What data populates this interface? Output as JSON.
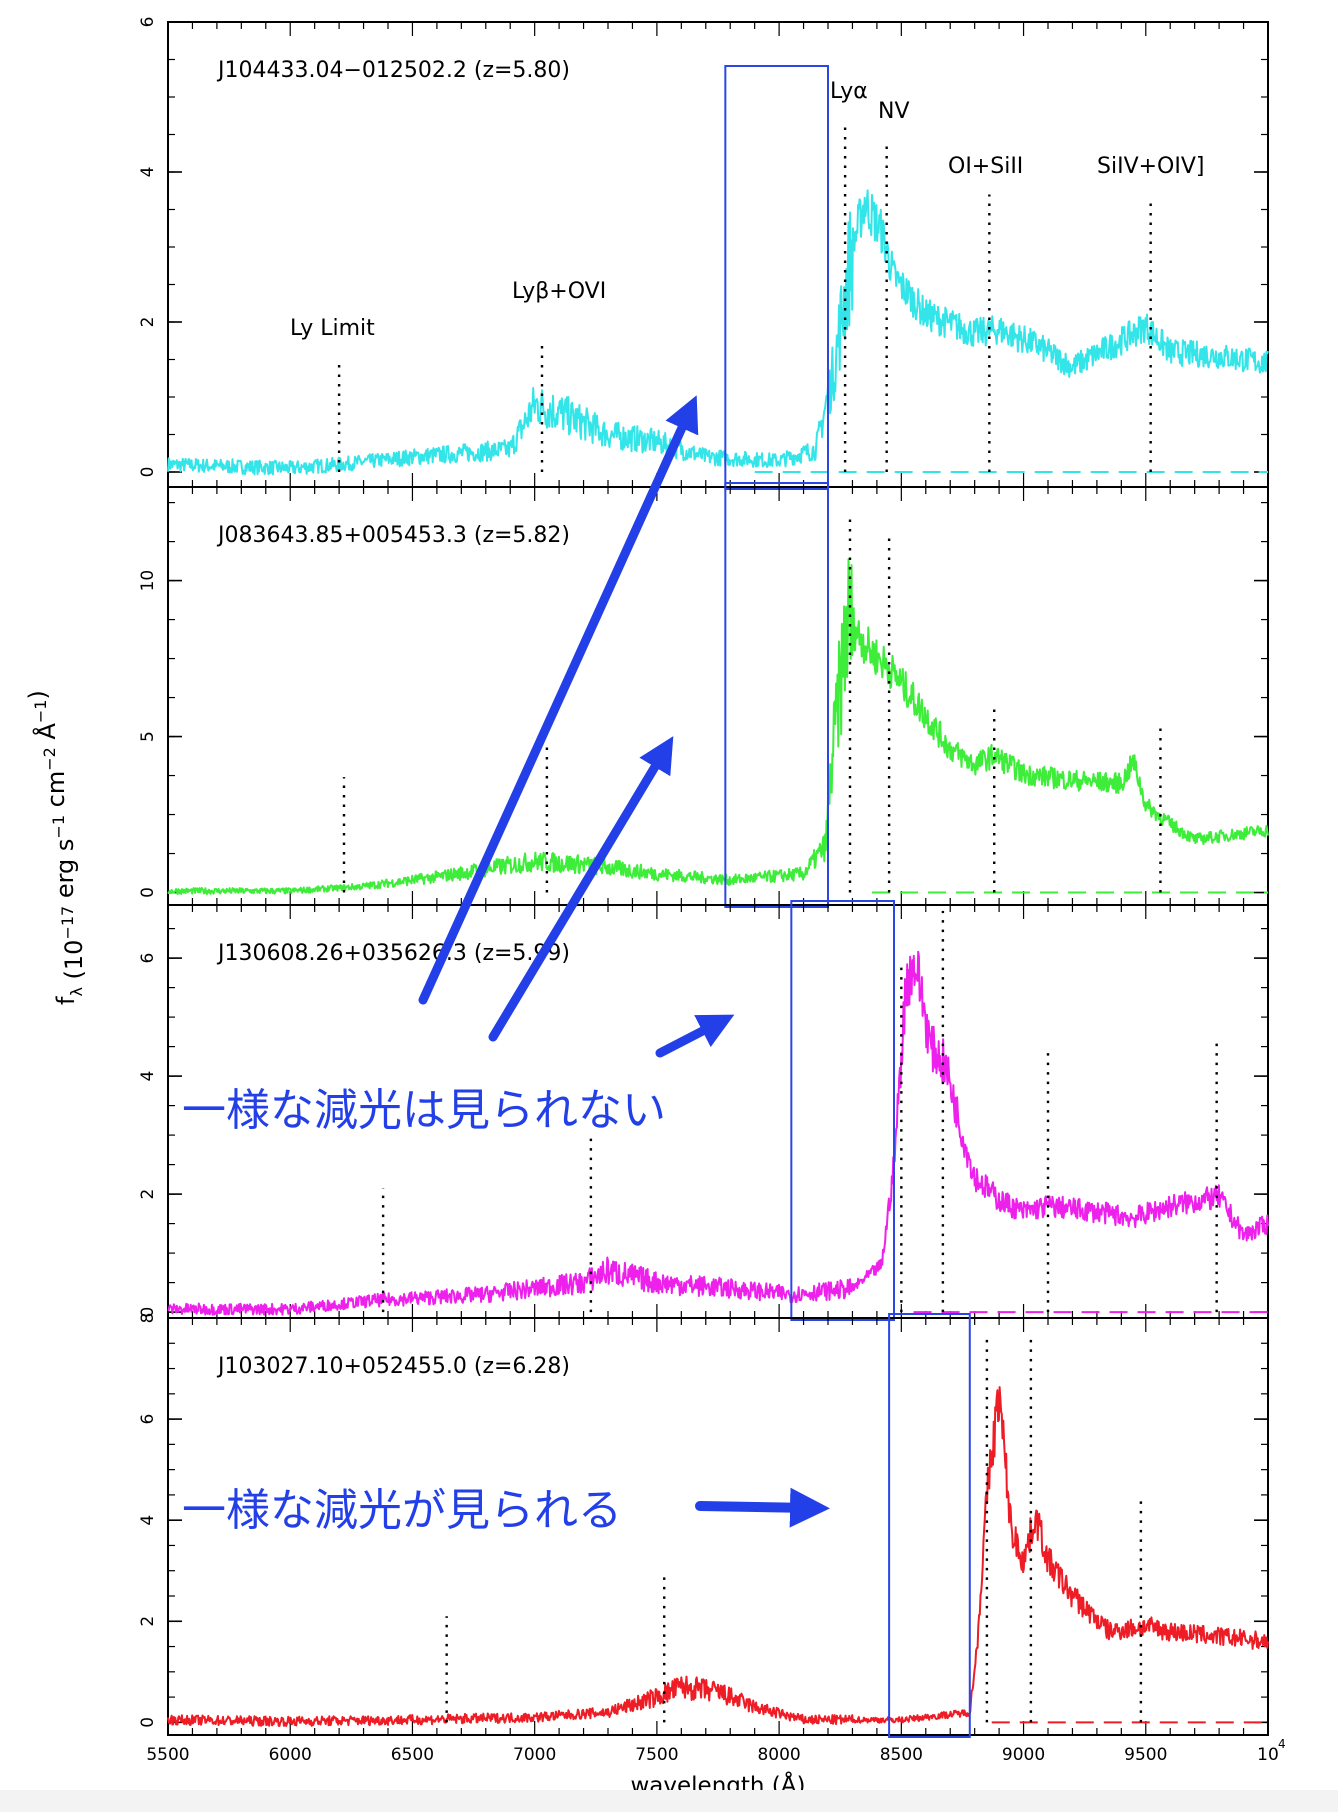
{
  "chart_data": {
    "type": "line",
    "xlabel": "wavelength (Å)",
    "ylabel_parts": [
      "f",
      "λ",
      " (10",
      "−17",
      " erg s",
      "−1",
      " cm",
      "−2",
      " Å",
      "−1",
      ")"
    ],
    "x_ticks": [
      "5500",
      "6000",
      "6500",
      "7000",
      "7500",
      "8000",
      "8500",
      "9000",
      "9500",
      "10"
    ],
    "x_tick_exp": "4",
    "xlim": [
      5500,
      10000
    ],
    "line_labels": {
      "ly_limit": "Ly  Limit",
      "ly_beta_ovi": "Lyβ+OVI",
      "ly_alpha": "Lyα",
      "nv": "NV",
      "oi_siii": "OI+SiII",
      "siiv_oiv": "SiIV+OIV]"
    },
    "panels": [
      {
        "name": "J104433.04−012502.2 (z=5.80)",
        "color": "#33e5e8",
        "ylim": [
          -0.2,
          6
        ],
        "y_ticks": [
          "0",
          "2",
          "4",
          "6"
        ],
        "y_tick_values": [
          0,
          2,
          4,
          6
        ],
        "line_x": [
          6200,
          7030,
          8270,
          8440,
          8860,
          9520
        ],
        "line_top": [
          1.5,
          1.7,
          4.6,
          4.4,
          3.7,
          3.6
        ],
        "box": [
          7780,
          8200
        ],
        "data": [
          [
            5500,
            0.1
          ],
          [
            6000,
            0.05
          ],
          [
            6200,
            0.1
          ],
          [
            6500,
            0.2
          ],
          [
            6900,
            0.3
          ],
          [
            7000,
            0.9
          ],
          [
            7100,
            0.8
          ],
          [
            7300,
            0.5
          ],
          [
            7500,
            0.4
          ],
          [
            7700,
            0.2
          ],
          [
            8000,
            0.15
          ],
          [
            8150,
            0.3
          ],
          [
            8220,
            1.3
          ],
          [
            8300,
            3.0
          ],
          [
            8350,
            3.6
          ],
          [
            8420,
            3.2
          ],
          [
            8470,
            2.6
          ],
          [
            8600,
            2.1
          ],
          [
            8800,
            1.85
          ],
          [
            8900,
            1.9
          ],
          [
            9050,
            1.7
          ],
          [
            9200,
            1.4
          ],
          [
            9400,
            1.75
          ],
          [
            9500,
            1.95
          ],
          [
            9600,
            1.6
          ],
          [
            9800,
            1.55
          ],
          [
            10000,
            1.45
          ]
        ]
      },
      {
        "name": "J083643.85+005453.3 (z=5.82)",
        "color": "#3ded3a",
        "ylim": [
          -0.4,
          13
        ],
        "y_ticks": [
          "0",
          "5",
          "10"
        ],
        "y_tick_values": [
          0,
          5,
          10
        ],
        "line_x": [
          6220,
          7050,
          8290,
          8450,
          8880,
          9560
        ],
        "line_top": [
          3.7,
          4.8,
          12.0,
          11.5,
          6.0,
          5.4
        ],
        "box": [
          7780,
          8200
        ],
        "data": [
          [
            5500,
            0.05
          ],
          [
            6000,
            0.05
          ],
          [
            6300,
            0.2
          ],
          [
            6600,
            0.5
          ],
          [
            7000,
            1.0
          ],
          [
            7200,
            0.9
          ],
          [
            7500,
            0.6
          ],
          [
            7800,
            0.4
          ],
          [
            8100,
            0.6
          ],
          [
            8190,
            1.5
          ],
          [
            8220,
            4.5
          ],
          [
            8280,
            8.8
          ],
          [
            8330,
            8.2
          ],
          [
            8380,
            7.7
          ],
          [
            8450,
            7.2
          ],
          [
            8550,
            6.2
          ],
          [
            8700,
            4.6
          ],
          [
            8800,
            4.1
          ],
          [
            8880,
            4.4
          ],
          [
            9000,
            3.8
          ],
          [
            9200,
            3.6
          ],
          [
            9400,
            3.5
          ],
          [
            9450,
            4.2
          ],
          [
            9500,
            2.8
          ],
          [
            9600,
            2.2
          ],
          [
            9700,
            1.7
          ],
          [
            9900,
            1.9
          ],
          [
            10000,
            2.0
          ]
        ]
      },
      {
        "name": "J130608.26+035626.3 (z=5.99)",
        "color": "#ee20ec",
        "ylim": [
          -0.1,
          6.9
        ],
        "y_ticks": [
          "0",
          "2",
          "4",
          "6"
        ],
        "y_tick_values": [
          0,
          2,
          4,
          6
        ],
        "line_x": [
          6380,
          7230,
          8500,
          8670,
          9100,
          9790
        ],
        "line_top": [
          2.1,
          3.0,
          5.9,
          6.8,
          4.5,
          4.6
        ],
        "box": [
          8050,
          8470
        ],
        "data": [
          [
            5500,
            0.05
          ],
          [
            6000,
            0.05
          ],
          [
            6350,
            0.2
          ],
          [
            6800,
            0.3
          ],
          [
            7200,
            0.5
          ],
          [
            7300,
            0.7
          ],
          [
            7500,
            0.5
          ],
          [
            7800,
            0.4
          ],
          [
            8050,
            0.3
          ],
          [
            8300,
            0.4
          ],
          [
            8420,
            0.8
          ],
          [
            8470,
            2.5
          ],
          [
            8520,
            5.6
          ],
          [
            8560,
            5.9
          ],
          [
            8620,
            4.5
          ],
          [
            8680,
            4.2
          ],
          [
            8750,
            3.0
          ],
          [
            8800,
            2.3
          ],
          [
            8900,
            1.9
          ],
          [
            9000,
            1.7
          ],
          [
            9100,
            1.8
          ],
          [
            9300,
            1.7
          ],
          [
            9450,
            1.6
          ],
          [
            9600,
            1.8
          ],
          [
            9800,
            1.95
          ],
          [
            9900,
            1.3
          ],
          [
            10000,
            1.5
          ]
        ]
      },
      {
        "name": "J103027.10+052455.0 (z=6.28)",
        "color": "#ee1c25",
        "ylim": [
          -0.25,
          8
        ],
        "y_ticks": [
          "0",
          "2",
          "4",
          "6",
          "8"
        ],
        "y_tick_values": [
          0,
          2,
          4,
          6,
          8
        ],
        "line_x": [
          6640,
          7530,
          8850,
          9030,
          9480
        ],
        "line_top": [
          2.1,
          3.0,
          7.6,
          7.6,
          4.5
        ],
        "box": [
          8450,
          8780
        ],
        "data": [
          [
            5500,
            0.05
          ],
          [
            6000,
            0.02
          ],
          [
            6500,
            0.05
          ],
          [
            7000,
            0.1
          ],
          [
            7300,
            0.2
          ],
          [
            7500,
            0.5
          ],
          [
            7600,
            0.7
          ],
          [
            7750,
            0.6
          ],
          [
            7900,
            0.3
          ],
          [
            8100,
            0.05
          ],
          [
            8500,
            0.05
          ],
          [
            8780,
            0.2
          ],
          [
            8810,
            1.5
          ],
          [
            8850,
            4.5
          ],
          [
            8900,
            6.5
          ],
          [
            8950,
            3.8
          ],
          [
            9000,
            3.2
          ],
          [
            9050,
            4.1
          ],
          [
            9100,
            3.2
          ],
          [
            9200,
            2.5
          ],
          [
            9350,
            1.8
          ],
          [
            9500,
            1.9
          ],
          [
            9600,
            1.8
          ],
          [
            9800,
            1.7
          ],
          [
            10000,
            1.6
          ]
        ]
      }
    ],
    "annotations": {
      "no_uniform_dimming": "一様な減光は見られない",
      "uniform_dimming": "一様な減光が見られる"
    }
  }
}
